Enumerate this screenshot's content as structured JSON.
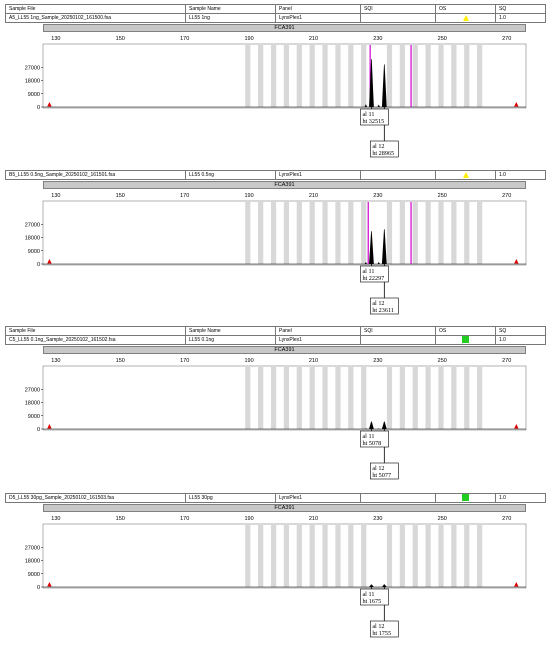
{
  "header_labels": {
    "sample_file": "Sample File",
    "sample_name": "Sample Name",
    "panel": "Panel",
    "sqi": "SQI",
    "os": "OS",
    "sq": "SQ"
  },
  "chart_data": [
    {
      "type": "line",
      "sample_file": "A5_LL55 1ng_Sample_20250102_161500.fsa",
      "sample_name": "LL55 1ng",
      "panel": "LynxPlex1",
      "sq_value": "1.0",
      "os_indicator": "yellow-triangle-icon",
      "marker": "FCA391",
      "x_ticks": [
        130,
        150,
        170,
        190,
        210,
        230,
        250,
        270
      ],
      "y_ticks": [
        27000,
        18000,
        9000,
        0
      ],
      "xlim": [
        126,
        276
      ],
      "ylim": [
        0,
        36000
      ],
      "peaks": [
        {
          "allele": "11",
          "height": 32515,
          "x": 228.0,
          "label_al": "al 11",
          "label_ht": "ht 32515"
        },
        {
          "allele": "12",
          "height": 28965,
          "x": 232.0,
          "label_al": "al 12",
          "label_ht": "ht 28965"
        }
      ],
      "magenta_lines": [
        227.6,
        240.3
      ],
      "header_visible": true
    },
    {
      "type": "line",
      "sample_file": "B5_LL55 0.5ng_Sample_20250102_161501.fsa",
      "sample_name": "LL55 0.5ng",
      "panel": "LynxPlex1",
      "sq_value": "1.0",
      "os_indicator": "yellow-triangle-icon",
      "marker": "FCA391",
      "x_ticks": [
        130,
        150,
        170,
        190,
        210,
        230,
        250,
        270
      ],
      "y_ticks": [
        27000,
        18000,
        9000,
        0
      ],
      "xlim": [
        126,
        276
      ],
      "ylim": [
        0,
        36000
      ],
      "peaks": [
        {
          "allele": "11",
          "height": 22297,
          "x": 228.0,
          "label_al": "al 11",
          "label_ht": "ht 22297"
        },
        {
          "allele": "12",
          "height": 23611,
          "x": 232.0,
          "label_al": "al 12",
          "label_ht": "ht 23611"
        }
      ],
      "magenta_lines": [
        227.0,
        240.3
      ],
      "header_visible": false
    },
    {
      "type": "line",
      "sample_file": "C5_LL55 0.1ng_Sample_20250102_161502.fsa",
      "sample_name": "LL55 0.1ng",
      "panel": "LynxPlex1",
      "sq_value": "1.0",
      "os_indicator": "green-square-icon",
      "marker": "FCA391",
      "x_ticks": [
        130,
        150,
        170,
        190,
        210,
        230,
        250,
        270
      ],
      "y_ticks": [
        27000,
        18000,
        9000,
        0
      ],
      "xlim": [
        126,
        276
      ],
      "ylim": [
        0,
        36000
      ],
      "peaks": [
        {
          "allele": "11",
          "height": 5078,
          "x": 228.0,
          "label_al": "al 11",
          "label_ht": "ht 5078"
        },
        {
          "allele": "12",
          "height": 5077,
          "x": 232.0,
          "label_al": "al 12",
          "label_ht": "ht 5077"
        }
      ],
      "magenta_lines": [],
      "header_visible": true
    },
    {
      "type": "line",
      "sample_file": "D5_LL55 30pg_Sample_20250102_161503.fsa",
      "sample_name": "LL55 30pg",
      "panel": "LynxPlex1",
      "sq_value": "1.0",
      "os_indicator": "green-square-icon",
      "marker": "FCA391",
      "x_ticks": [
        130,
        150,
        170,
        190,
        210,
        230,
        250,
        270
      ],
      "y_ticks": [
        27000,
        18000,
        9000,
        0
      ],
      "xlim": [
        126,
        276
      ],
      "ylim": [
        0,
        36000
      ],
      "peaks": [
        {
          "allele": "11",
          "height": 1675,
          "x": 228.0,
          "label_al": "al 11",
          "label_ht": "ht 1675"
        },
        {
          "allele": "12",
          "height": 1755,
          "x": 232.0,
          "label_al": "al 12",
          "label_ht": "ht 1755"
        }
      ],
      "magenta_lines": [],
      "header_visible": false
    }
  ]
}
